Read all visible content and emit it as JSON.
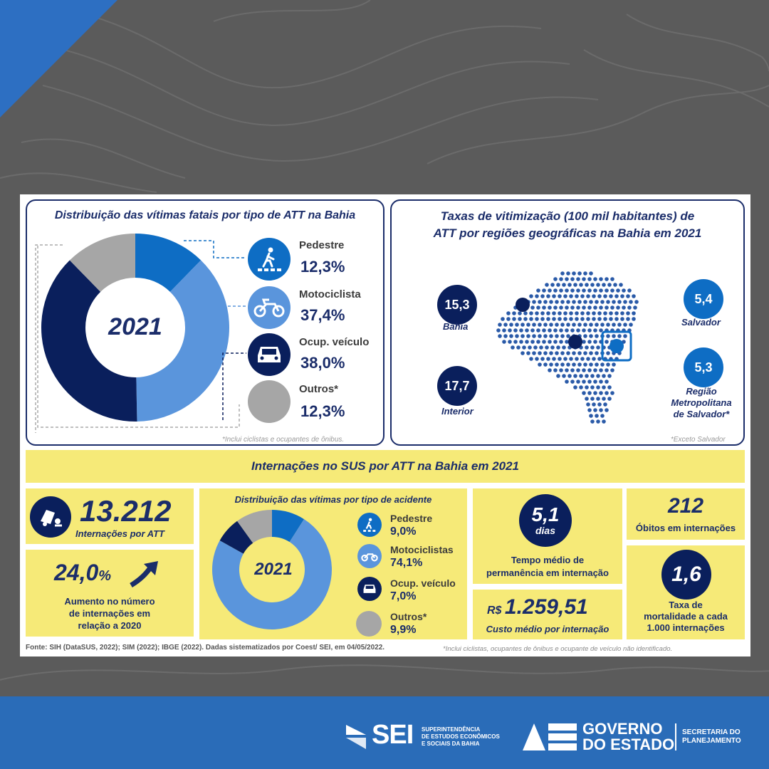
{
  "colors": {
    "navy": "#0a1f5c",
    "blue": "#0e6dc4",
    "light_blue": "#5a95dc",
    "gray": "#a6a6a6",
    "yellow": "#f6ea78",
    "footer": "#2a6cb8"
  },
  "top_left": {
    "title": "Distribuição das vítimas fatais por tipo de ATT na Bahia",
    "center_year": "2021",
    "footnote": "*Inclui ciclistas e ocupantes de ônibus.",
    "items": [
      {
        "label": "Pedestre",
        "value": "12,3%",
        "icon": "pedestrian-crossing-icon"
      },
      {
        "label": "Motociclista",
        "value": "37,4%",
        "icon": "motorcycle-icon"
      },
      {
        "label": "Ocup. veículo",
        "value": "38,0%",
        "icon": "car-icon"
      },
      {
        "label": "Outros*",
        "value": "12,3%",
        "icon": "gray-circle-icon"
      }
    ]
  },
  "top_right": {
    "title_line1": "Taxas de vitimização (100 mil habitantes) de",
    "title_line2": "ATT  por regiões geográficas na Bahia em 2021",
    "footnote": "*Exceto Salvador",
    "regions": [
      {
        "value": "15,3",
        "label": "Bahia"
      },
      {
        "value": "17,7",
        "label": "Interior"
      },
      {
        "value": "5,4",
        "label": "Salvador"
      },
      {
        "value": "5,3",
        "label_lines": [
          "Região",
          "Metropolitana",
          "de Salvador*"
        ]
      }
    ]
  },
  "sus": {
    "banner": "Internações no SUS por ATT na Bahia em 2021",
    "total_value": "13.212",
    "total_label": "Internações por ATT",
    "increase_value": "24,0",
    "increase_unit": "%",
    "increase_lines": [
      "Aumento no número",
      "de internações em",
      "relação a 2020"
    ],
    "dist_title": "Distribuição das vítimas por tipo de acidente",
    "dist_year": "2021",
    "dist_items": [
      {
        "label": "Pedestre",
        "value": "9,0%"
      },
      {
        "label": "Motociclistas",
        "value": "74,1%"
      },
      {
        "label": "Ocup. veículo",
        "value": "7,0%"
      },
      {
        "label": "Outros*",
        "value": "9,9%"
      }
    ],
    "stay_value": "5,1",
    "stay_unit": "dias",
    "stay_lines": [
      "Tempo médio de",
      "permanência em internação"
    ],
    "cost_prefix": "R$",
    "cost_value": "1.259,51",
    "cost_label": "Custo médio por internação",
    "deaths_value": "212",
    "deaths_label": "Óbitos em internações",
    "mortality_value": "1,6",
    "mortality_lines": [
      "Taxa de",
      "mortalidade a cada",
      "1.000 internações"
    ]
  },
  "sources": "Fonte: SIH (DataSUS, 2022); SIM (2022); IBGE (2022). Dadas sistematizados por Coest/ SEI, em 04/05/2022.",
  "bottom_note": "*Inclui ciclistas, ocupantes de ônibus e ocupante de veículo não identificado.",
  "footer": {
    "sei_text": "SEI",
    "sei_lines": [
      "SUPERINTENDÊNCIA",
      "DE ESTUDOS ECONÔMICOS",
      "E SOCIAIS DA BAHIA"
    ],
    "gov_lines": [
      "GOVERNO",
      "DO ESTADO"
    ],
    "sec_lines": [
      "SECRETARIA DO",
      "PLANEJAMENTO"
    ]
  },
  "chart_data": [
    {
      "type": "pie",
      "title": "Distribuição das vítimas fatais por tipo de ATT na Bahia",
      "categories": [
        "Pedestre",
        "Motociclista",
        "Ocup. veículo",
        "Outros*"
      ],
      "values": [
        12.3,
        37.4,
        38.0,
        12.3
      ],
      "colors": [
        "#0e6dc4",
        "#5a95dc",
        "#0a1f5c",
        "#a6a6a6"
      ]
    },
    {
      "type": "pie",
      "title": "Distribuição das vítimas por tipo de acidente",
      "categories": [
        "Pedestre",
        "Motociclistas",
        "Ocup. veículo",
        "Outros*"
      ],
      "values": [
        9.0,
        74.1,
        7.0,
        9.9
      ],
      "colors": [
        "#0e6dc4",
        "#5a95dc",
        "#0a1f5c",
        "#a6a6a6"
      ]
    }
  ]
}
